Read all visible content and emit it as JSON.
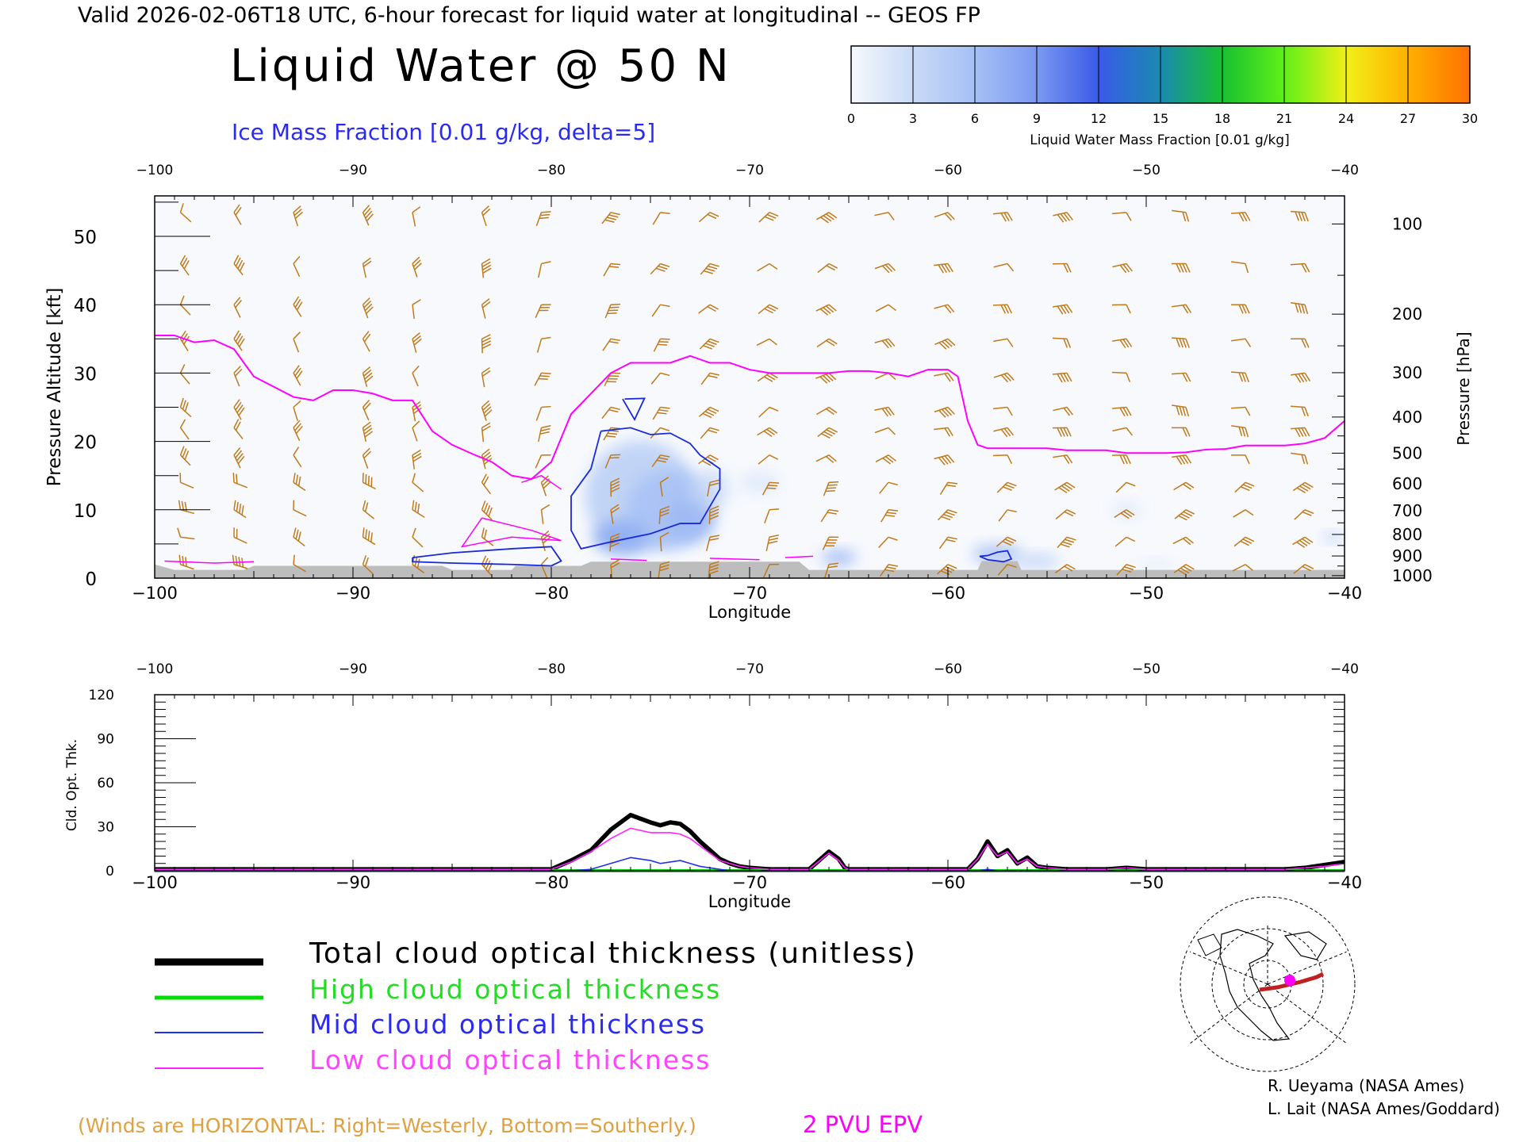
{
  "header": {
    "valid_line": "Valid 2026-02-06T18 UTC, 6-hour forecast for liquid water at longitudinal -- GEOS FP",
    "title": "Liquid Water @ 50 N",
    "subtitle": "Ice Mass Fraction [0.01 g/kg, delta=5]"
  },
  "colorbar": {
    "label": "Liquid Water Mass Fraction [0.01 g/kg]",
    "ticks": [
      "0",
      "3",
      "6",
      "9",
      "12",
      "15",
      "18",
      "21",
      "24",
      "27",
      "30"
    ],
    "colors": [
      "#f6f8fc",
      "#c9daf7",
      "#a5c0f5",
      "#7b98f2",
      "#3a5ae8",
      "#1a8ab0",
      "#18c030",
      "#60f018",
      "#f0f018",
      "#ffb000",
      "#ff7000",
      "#ff2a00"
    ]
  },
  "colors": {
    "winds": "#c07a1a",
    "epv": "#ff00ff",
    "ice": "#1a2ad8",
    "terrain": "#bdbdbd",
    "total": "#000000",
    "high": "#00dd00",
    "mid": "#2030ee",
    "low": "#ff22ff"
  },
  "top_panel": {
    "xlabel": "Longitude",
    "ylabel": "Pressure Altitude [kft]",
    "y2label": "Pressure [hPa]",
    "x_ticks": [
      "−100",
      "−90",
      "−80",
      "−70",
      "−60",
      "−50",
      "−40"
    ],
    "y_ticks": [
      "0",
      "10",
      "20",
      "30",
      "40",
      "50"
    ],
    "pressure_ticks": [
      "100",
      "200",
      "300",
      "400",
      "500",
      "600",
      "700",
      "800",
      "900",
      "1000"
    ]
  },
  "bottom_panel": {
    "xlabel": "Longitude",
    "ylabel": "Cld. Opt. Thk.",
    "x_ticks": [
      "−100",
      "−90",
      "−80",
      "−70",
      "−60",
      "−50",
      "−40"
    ],
    "y_ticks": [
      "0",
      "30",
      "60",
      "90",
      "120"
    ]
  },
  "legend": {
    "total": "Total cloud optical thickness (unitless)",
    "high": "High cloud optical thickness",
    "mid": "Mid cloud optical thickness",
    "low": "Low cloud optical thickness"
  },
  "footer": {
    "winds_note": "(Winds are HORIZONTAL: Right=Westerly, Bottom=Southerly.)",
    "epv_label": "2 PVU EPV",
    "credit1": "R. Ueyama (NASA Ames)",
    "credit2": "L. Lait (NASA Ames/Goddard)"
  },
  "chart_data": [
    {
      "type": "contour",
      "title": "Liquid Water @ 50 N",
      "xlabel": "Longitude",
      "ylabel": "Pressure Altitude [kft]",
      "xlim": [
        -100,
        -40
      ],
      "ylim": [
        0,
        56
      ],
      "epv_2pvu_kft": {
        "x": [
          -100,
          -99,
          -98,
          -97,
          -96,
          -95,
          -94,
          -93,
          -92,
          -91,
          -90,
          -89,
          -88,
          -87,
          -86,
          -85,
          -84,
          -83,
          -82,
          -81,
          -80,
          -79,
          -78,
          -77,
          -76,
          -75,
          -74,
          -73,
          -72,
          -71,
          -70,
          -69,
          -68,
          -67,
          -66,
          -65,
          -64,
          -63,
          -62,
          -61,
          -60,
          -59.5,
          -59,
          -58.5,
          -58,
          -57,
          -56,
          -55,
          -54,
          -53,
          -52,
          -51,
          -50,
          -49,
          -48,
          -47,
          -46,
          -45,
          -44,
          -43,
          -42,
          -41,
          -40
        ],
        "y": [
          35.5,
          35.5,
          34.5,
          34.8,
          33.5,
          29.5,
          28,
          26.5,
          26,
          27.5,
          27.5,
          27,
          26,
          26,
          21.5,
          19.5,
          18.2,
          17,
          15,
          14.5,
          17,
          24,
          27,
          30,
          31.5,
          31.5,
          31.5,
          32.5,
          31.5,
          31.5,
          30.5,
          30,
          30,
          30,
          30,
          30.3,
          30.3,
          30,
          29.5,
          30.5,
          30.5,
          29.5,
          23,
          19.5,
          19,
          19,
          19,
          19,
          18.7,
          18.7,
          18.7,
          18.3,
          18.3,
          18.3,
          18.4,
          18.8,
          18.9,
          19.4,
          19.4,
          19.4,
          19.7,
          20.5,
          23
        ]
      },
      "ice_contour_lon_kft": [
        {
          "x": [
            -76.3,
            -75.3,
            -75.8,
            -76.4
          ],
          "y": [
            26.2,
            26.3,
            23.2,
            26.2
          ]
        },
        {
          "x": [
            -77.5,
            -76,
            -75,
            -74,
            -73,
            -72.5,
            -72,
            -71.5,
            -71.5,
            -72.5,
            -73.5,
            -75,
            -77,
            -78.5,
            -79,
            -79,
            -78,
            -77.5
          ],
          "y": [
            21.5,
            22,
            21,
            21.2,
            19.7,
            18,
            17,
            16,
            13,
            8,
            8,
            6.5,
            5.3,
            4.3,
            7,
            12,
            16,
            21.5
          ]
        },
        {
          "x": [
            -87,
            -85,
            -82,
            -80,
            -79.5,
            -80,
            -82,
            -85,
            -87,
            -87
          ],
          "y": [
            3,
            3.7,
            4.3,
            4.6,
            2.5,
            1.8,
            2,
            2.2,
            2.4,
            3
          ]
        },
        {
          "x": [
            -58,
            -57.5,
            -57,
            -56.8,
            -57.2,
            -58,
            -58.4,
            -58
          ],
          "y": [
            3.3,
            3.8,
            4,
            2.8,
            2.4,
            2.7,
            3.2,
            3.3
          ]
        }
      ],
      "liquid_water_max_001gkg": 9,
      "liquid_water_regions_lon_range": [
        [
          -78,
          -71.5
        ],
        [
          -67,
          -65
        ],
        [
          -59,
          -55
        ]
      ]
    },
    {
      "type": "line",
      "xlabel": "Longitude",
      "ylabel": "Cld. Opt. Thk.",
      "xlim": [
        -100,
        -40
      ],
      "ylim": [
        0,
        120
      ],
      "x": [
        -100,
        -80,
        -79,
        -78,
        -77,
        -76,
        -75,
        -74.5,
        -74,
        -73.5,
        -73,
        -72.5,
        -72,
        -71.5,
        -71,
        -70.5,
        -70,
        -69,
        -68,
        -67,
        -66,
        -65.5,
        -65.2,
        -65,
        -64,
        -60,
        -59,
        -58.5,
        -58,
        -57.5,
        -57,
        -56.5,
        -56,
        -55.5,
        -55,
        -54,
        -53,
        -52,
        -51,
        -50,
        -43,
        -42,
        -41,
        -40
      ],
      "series": [
        {
          "name": "Total cloud optical thickness (unitless)",
          "values": [
            1,
            1,
            7,
            14,
            28,
            38,
            33,
            31,
            33,
            32,
            27,
            20,
            14,
            8,
            5,
            3,
            2,
            1,
            1,
            1,
            13,
            8,
            2,
            1,
            1,
            1,
            1,
            8,
            20,
            10,
            14,
            5,
            9,
            3,
            2,
            1,
            1,
            1,
            2,
            1,
            1,
            2,
            4,
            6
          ]
        },
        {
          "name": "High cloud optical thickness",
          "values": [
            0,
            0,
            0,
            0,
            0,
            0,
            0,
            0,
            0,
            0,
            0,
            0,
            0,
            0,
            0,
            0,
            0,
            0,
            0,
            0,
            0,
            0,
            0,
            0,
            0,
            0,
            0,
            0,
            0,
            0,
            0,
            0,
            0,
            0,
            0,
            0,
            0,
            0,
            0,
            0,
            0,
            0,
            0,
            0
          ]
        },
        {
          "name": "Mid cloud optical thickness",
          "values": [
            0,
            0,
            0,
            1,
            5,
            9,
            7,
            5,
            6,
            7,
            5,
            3,
            2,
            1,
            0,
            0,
            0,
            0,
            0,
            0,
            0,
            0,
            0,
            0,
            0,
            0,
            0,
            0,
            1,
            0,
            0,
            0,
            0,
            0,
            0,
            0,
            0,
            0,
            0,
            0,
            0,
            0,
            0,
            0
          ]
        },
        {
          "name": "Low cloud optical thickness",
          "values": [
            1,
            1,
            6,
            13,
            22,
            29,
            26,
            26,
            26,
            25,
            22,
            17,
            12,
            7,
            5,
            3,
            2,
            1,
            1,
            1,
            12,
            7,
            2,
            1,
            1,
            1,
            1,
            8,
            18,
            10,
            13,
            5,
            8,
            3,
            2,
            1,
            1,
            1,
            2,
            1,
            1,
            2,
            3,
            5
          ]
        }
      ]
    }
  ]
}
